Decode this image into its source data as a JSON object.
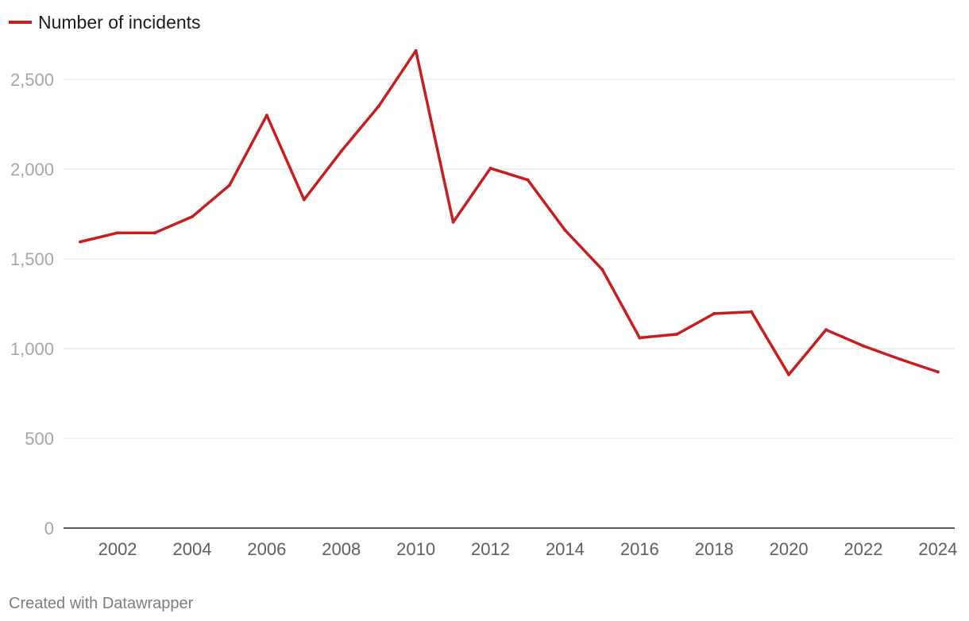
{
  "chart_data": {
    "type": "line",
    "title": "",
    "xlabel": "",
    "ylabel": "",
    "x": [
      2001,
      2002,
      2003,
      2004,
      2005,
      2006,
      2007,
      2008,
      2009,
      2010,
      2011,
      2012,
      2013,
      2014,
      2015,
      2016,
      2017,
      2018,
      2019,
      2020,
      2021,
      2022,
      2023,
      2024
    ],
    "series": [
      {
        "name": "Number of incidents",
        "color": "#c71e1d",
        "values": [
          1595,
          1645,
          1645,
          1735,
          1910,
          2300,
          1830,
          2100,
          2350,
          2660,
          1705,
          2005,
          1940,
          1660,
          1440,
          1060,
          1080,
          1195,
          1205,
          855,
          1105,
          1015,
          940,
          870
        ]
      }
    ],
    "xlim": [
      2000.55,
      2024.45
    ],
    "ylim": [
      0,
      2500
    ],
    "yticks": [
      0,
      500,
      1000,
      1500,
      2000,
      2500
    ],
    "ytick_labels": [
      "0",
      "500",
      "1,000",
      "1,500",
      "2,000",
      "2,500"
    ],
    "xticks": [
      2002,
      2004,
      2006,
      2008,
      2010,
      2012,
      2014,
      2016,
      2018,
      2020,
      2022,
      2024
    ],
    "xtick_labels": [
      "2002",
      "2004",
      "2006",
      "2008",
      "2010",
      "2012",
      "2014",
      "2016",
      "2018",
      "2020",
      "2022",
      "2024"
    ],
    "grid": true,
    "legend": "top-left"
  },
  "legend": {
    "label": "Number of incidents"
  },
  "footer": {
    "credit": "Created with Datawrapper"
  }
}
